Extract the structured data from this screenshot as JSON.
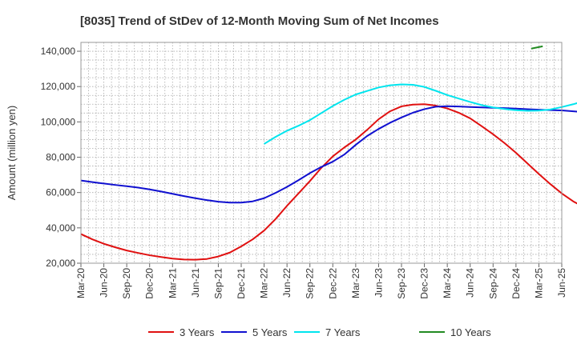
{
  "chart_data": {
    "type": "line",
    "title": "[8035]  Trend of StDev of 12-Month Moving Sum of Net Incomes",
    "xlabel": "",
    "ylabel": "Amount (million yen)",
    "ylim": [
      20000,
      145000
    ],
    "y_ticks": [
      20000,
      40000,
      60000,
      80000,
      100000,
      120000,
      140000
    ],
    "y_tick_labels": [
      "20,000",
      "40,000",
      "60,000",
      "80,000",
      "100,000",
      "120,000",
      "140,000"
    ],
    "x_tick_labels": [
      "Mar-20",
      "Jun-20",
      "Sep-20",
      "Dec-20",
      "Mar-21",
      "Jun-21",
      "Sep-21",
      "Dec-21",
      "Mar-22",
      "Jun-22",
      "Sep-22",
      "Dec-22",
      "Mar-23",
      "Jun-23",
      "Sep-23",
      "Dec-23",
      "Mar-24",
      "Jun-24",
      "Sep-24",
      "Dec-24",
      "Mar-25",
      "Jun-25"
    ],
    "grid": true,
    "legend_position": "bottom",
    "series": [
      {
        "name": "3 Years",
        "color": "#e01010",
        "start": "Mar-20",
        "values": [
          36500,
          33500,
          31000,
          29000,
          27200,
          25800,
          24500,
          23500,
          22600,
          22100,
          22000,
          22400,
          23800,
          26000,
          29500,
          33500,
          38500,
          45000,
          52500,
          59500,
          66500,
          74000,
          80500,
          85500,
          90000,
          95500,
          101500,
          106000,
          108800,
          109800,
          110000,
          109200,
          107600,
          105200,
          102000,
          97600,
          93000,
          88000,
          82500,
          76500,
          70500,
          64800,
          59500,
          55000,
          51500,
          49000,
          48200,
          49000,
          51500,
          54500,
          58000
        ]
      },
      {
        "name": "5 Years",
        "color": "#1010d0",
        "start": "Mar-20",
        "values": [
          66800,
          65900,
          65100,
          64300,
          63600,
          62800,
          61800,
          60600,
          59300,
          58000,
          56800,
          55700,
          54800,
          54300,
          54300,
          55000,
          56800,
          59800,
          63200,
          67000,
          71000,
          74500,
          77500,
          81500,
          87000,
          92000,
          96000,
          99500,
          102500,
          105200,
          107200,
          108600,
          108900,
          108700,
          108400,
          108200,
          108000,
          107800,
          107500,
          107200,
          106900,
          106700,
          106500,
          106000,
          105500,
          105000,
          104700,
          104800,
          104700,
          104200,
          103500
        ]
      },
      {
        "name": "7 Years",
        "color": "#00e5ee",
        "start": "Mar-22",
        "values": [
          87500,
          91500,
          95000,
          97800,
          101000,
          105000,
          109000,
          112500,
          115500,
          117500,
          119500,
          120700,
          121200,
          121000,
          119800,
          117600,
          115200,
          113200,
          111300,
          109500,
          108200,
          107300,
          106600,
          106300,
          106400,
          107000,
          108400,
          110000,
          111800,
          113500
        ]
      },
      {
        "name": "10 Years",
        "color": "#228b22",
        "start": "Feb-25",
        "values": [
          141500,
          142800
        ]
      }
    ]
  }
}
